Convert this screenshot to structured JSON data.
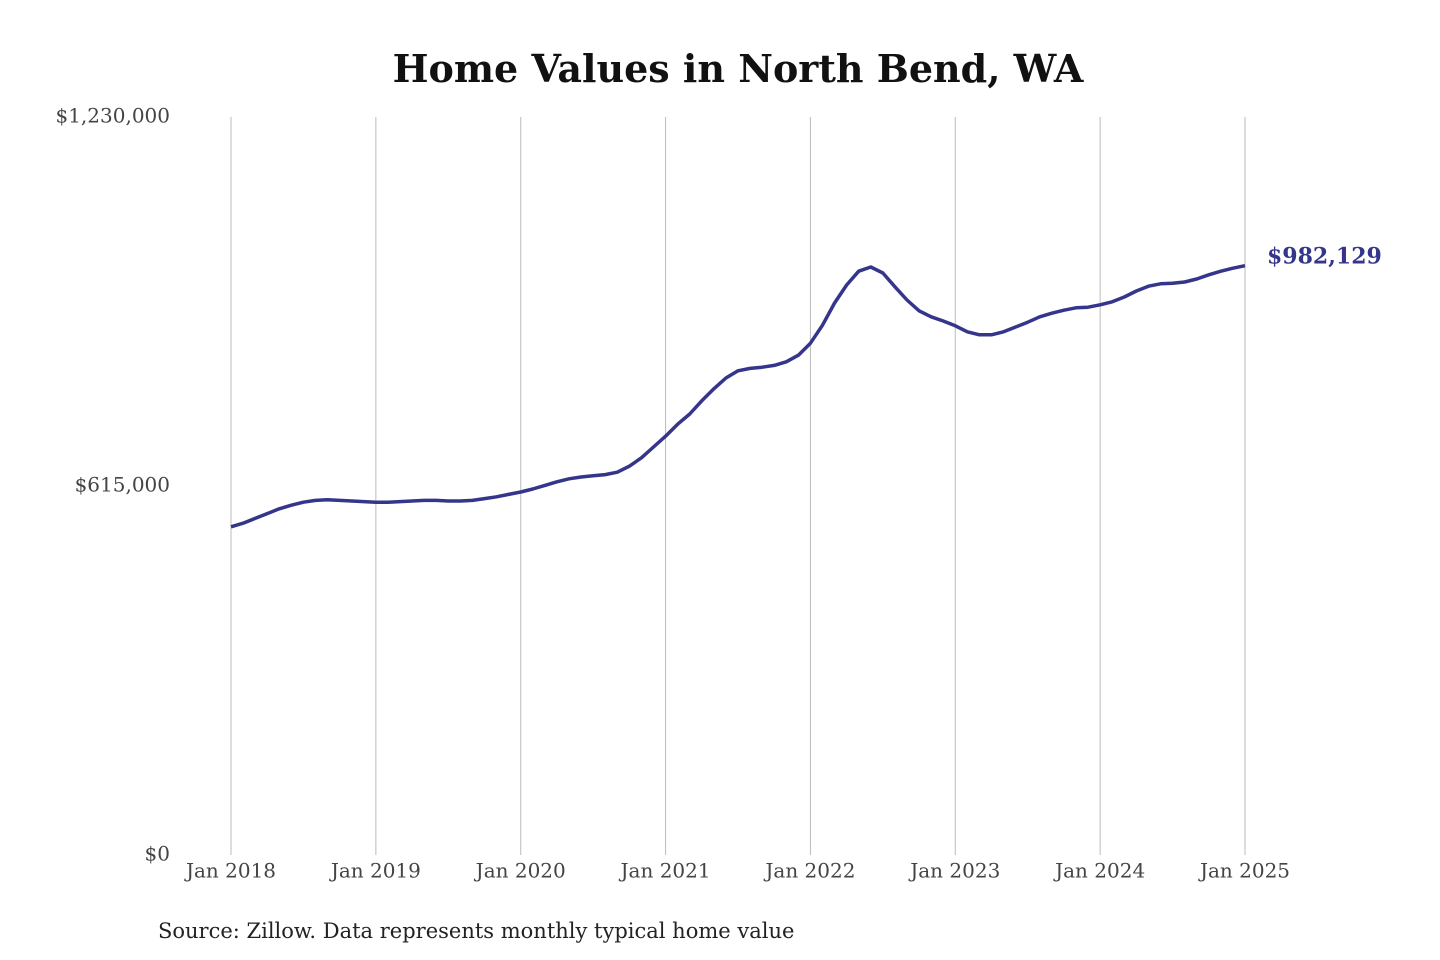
{
  "chart_data": {
    "type": "line",
    "title": "Home Values in North Bend, WA",
    "source": "Source: Zillow. Data represents monthly typical home value",
    "categories": [
      "Jan 2018",
      null,
      null,
      null,
      null,
      null,
      null,
      null,
      null,
      null,
      null,
      null,
      "Jan 2019",
      null,
      null,
      null,
      null,
      null,
      null,
      null,
      null,
      null,
      null,
      null,
      "Jan 2020",
      null,
      null,
      null,
      null,
      null,
      null,
      null,
      null,
      null,
      null,
      null,
      "Jan 2021",
      null,
      null,
      null,
      null,
      null,
      null,
      null,
      null,
      null,
      null,
      null,
      "Jan 2022",
      null,
      null,
      null,
      null,
      null,
      null,
      null,
      null,
      null,
      null,
      null,
      "Jan 2023",
      null,
      null,
      null,
      null,
      null,
      null,
      null,
      null,
      null,
      null,
      null,
      "Jan 2024",
      null,
      null,
      null,
      null,
      null,
      null,
      null,
      null,
      null,
      null,
      null,
      "Jan 2025"
    ],
    "series": [
      {
        "color": "#35358c",
        "values": [
          547000,
          553000,
          561000,
          569000,
          577000,
          583000,
          588000,
          591000,
          592000,
          591000,
          590000,
          589000,
          588000,
          588000,
          589000,
          590000,
          591000,
          591000,
          590000,
          590000,
          591000,
          594000,
          597000,
          601000,
          605000,
          610000,
          616000,
          622000,
          627000,
          630000,
          632000,
          634000,
          638000,
          648000,
          662000,
          680000,
          698000,
          718000,
          735000,
          757000,
          777000,
          795000,
          807000,
          811000,
          813000,
          816000,
          822000,
          833000,
          853000,
          883000,
          920000,
          950000,
          973000,
          980000,
          970000,
          947000,
          925000,
          907000,
          897000,
          890000,
          882000,
          872000,
          867000,
          867000,
          872000,
          880000,
          888000,
          897000,
          903000,
          908000,
          912000,
          913000,
          917000,
          922000,
          930000,
          940000,
          948000,
          952000,
          953000,
          955000,
          960000,
          967000,
          973000,
          978000,
          982129
        ],
        "value_labels": [
          null,
          null,
          null,
          null,
          null,
          null,
          null,
          null,
          null,
          null,
          null,
          null,
          null,
          null,
          null,
          null,
          null,
          null,
          null,
          null,
          null,
          null,
          null,
          null,
          null,
          null,
          null,
          null,
          null,
          null,
          null,
          null,
          null,
          null,
          null,
          null,
          null,
          null,
          null,
          null,
          null,
          null,
          null,
          null,
          null,
          null,
          null,
          null,
          null,
          null,
          null,
          null,
          null,
          null,
          null,
          null,
          null,
          null,
          null,
          null,
          null,
          null,
          null,
          null,
          null,
          null,
          null,
          null,
          null,
          null,
          null,
          null,
          null,
          null,
          null,
          null,
          null,
          null,
          null,
          null,
          null,
          null,
          null,
          null,
          "$982,129"
        ]
      }
    ],
    "ylim": [
      0,
      1230000
    ],
    "yticks": [
      {
        "value": 0,
        "label": "$0"
      },
      {
        "value": 615000,
        "label": "$615,000"
      },
      {
        "value": 1230000,
        "label": "$1,230,000"
      }
    ],
    "grid": "x"
  }
}
